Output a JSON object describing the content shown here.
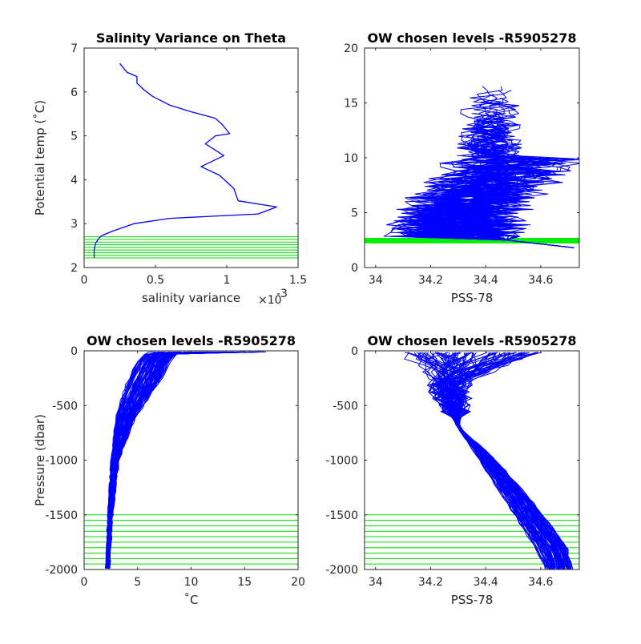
{
  "chart_data": [
    {
      "type": "line",
      "title": "Salinity Variance on Theta",
      "xlabel": "salinity variance",
      "x_exponent_label": "×10",
      "x_exponent_power": "-3",
      "ylabel": "Potential temp (˚C)",
      "xlim": [
        0,
        1.5
      ],
      "ylim": [
        2,
        7
      ],
      "xticks": [
        0,
        0.5,
        1,
        1.5
      ],
      "xtick_labels": [
        "0",
        "0.5",
        "1",
        "1.5"
      ],
      "yticks": [
        2,
        3,
        4,
        5,
        6,
        7
      ],
      "ytick_labels": [
        "2",
        "3",
        "4",
        "5",
        "6",
        "7"
      ],
      "series": [
        {
          "color": "#0000ff",
          "x": [
            0.07,
            0.07,
            0.08,
            0.1,
            0.12,
            0.2,
            0.35,
            0.6,
            1.22,
            1.35,
            1.08,
            1.05,
            0.95,
            0.82,
            0.98,
            0.85,
            0.92,
            1.02,
            0.97,
            0.92,
            0.75,
            0.6,
            0.48,
            0.42,
            0.37,
            0.37,
            0.3,
            0.25
          ],
          "y": [
            2.22,
            2.4,
            2.55,
            2.65,
            2.72,
            2.83,
            3.0,
            3.12,
            3.22,
            3.38,
            3.52,
            3.8,
            4.1,
            4.3,
            4.55,
            4.82,
            5.0,
            5.05,
            5.25,
            5.4,
            5.55,
            5.7,
            5.9,
            6.05,
            6.2,
            6.35,
            6.45,
            6.65
          ]
        }
      ],
      "chosen_levels": {
        "color": "#00dd00",
        "y": [
          2.22,
          2.28,
          2.34,
          2.4,
          2.46,
          2.52,
          2.58,
          2.64,
          2.7
        ]
      }
    },
    {
      "type": "line",
      "title": "OW chosen levels -R5905278",
      "xlabel": "PSS-78",
      "ylabel": "",
      "xlim": [
        33.96,
        34.74
      ],
      "ylim": [
        0,
        20
      ],
      "xticks": [
        34.0,
        34.2,
        34.4,
        34.6
      ],
      "xtick_labels": [
        "34",
        "34.2",
        "34.4",
        "34.6"
      ],
      "yticks": [
        0,
        5,
        10,
        15,
        20
      ],
      "ytick_labels": [
        "0",
        "5",
        "10",
        "15",
        "20"
      ],
      "profile_color": "#0000ff",
      "chosen_color": "#00ee00",
      "chosen_band": [
        2.2,
        2.7
      ]
    },
    {
      "type": "line",
      "title": "OW chosen levels -R5905278",
      "xlabel": "˚C",
      "ylabel": "Pressure (dbar)",
      "xlim": [
        0,
        20
      ],
      "ylim": [
        -2000,
        0
      ],
      "xticks": [
        0,
        5,
        10,
        15,
        20
      ],
      "xtick_labels": [
        "0",
        "5",
        "10",
        "15",
        "20"
      ],
      "yticks": [
        -2000,
        -1500,
        -1000,
        -500,
        0
      ],
      "ytick_labels": [
        "-2000",
        "-1500",
        "-1000",
        "-500",
        "0"
      ],
      "profile_color": "#0000ff",
      "chosen_color": "#00dd00",
      "chosen_levels": [
        -1500,
        -1550,
        -1600,
        -1650,
        -1700,
        -1750,
        -1800,
        -1850,
        -1900,
        -1950
      ]
    },
    {
      "type": "line",
      "title": "OW chosen levels -R5905278",
      "xlabel": "PSS-78",
      "ylabel": "",
      "xlim": [
        33.96,
        34.74
      ],
      "ylim": [
        -2000,
        0
      ],
      "xticks": [
        34.0,
        34.2,
        34.4,
        34.6
      ],
      "xtick_labels": [
        "34",
        "34.2",
        "34.4",
        "34.6"
      ],
      "yticks": [
        -2000,
        -1500,
        -1000,
        -500,
        0
      ],
      "ytick_labels": [
        "-2000",
        "-1500",
        "-1000",
        "-500",
        "0"
      ],
      "profile_color": "#0000ff",
      "chosen_color": "#00dd00",
      "chosen_levels": [
        -1500,
        -1550,
        -1600,
        -1650,
        -1700,
        -1750,
        -1800,
        -1850,
        -1900,
        -1950
      ]
    }
  ]
}
